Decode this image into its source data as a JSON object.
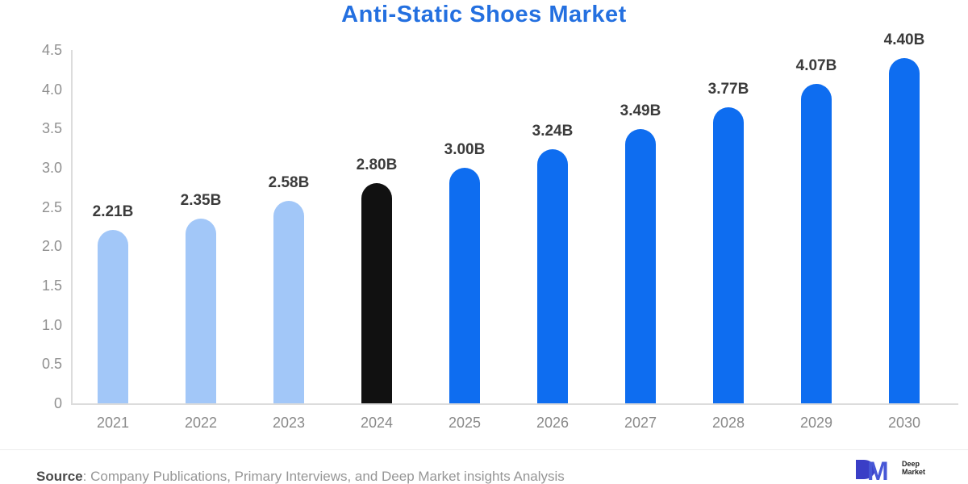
{
  "page": {
    "title": "Anti-Static Shoes Market"
  },
  "chart_data": {
    "type": "bar",
    "title": "Anti-Static Shoes Market",
    "categories": [
      "2021",
      "2022",
      "2023",
      "2024",
      "2025",
      "2026",
      "2027",
      "2028",
      "2029",
      "2030"
    ],
    "values": [
      2.21,
      2.35,
      2.58,
      2.8,
      3.0,
      3.24,
      3.49,
      3.77,
      4.07,
      4.4
    ],
    "bar_labels": [
      "2.21B",
      "2.35B",
      "2.58B",
      "2.80B",
      "3.00B",
      "3.24B",
      "3.49B",
      "3.77B",
      "4.07B",
      "4.40B"
    ],
    "bar_colors": [
      "#a2c7f8",
      "#a2c7f8",
      "#a2c7f8",
      "#111111",
      "#0e6df0",
      "#0e6df0",
      "#0e6df0",
      "#0e6df0",
      "#0e6df0",
      "#0e6df0"
    ],
    "series_semantics": {
      "historical": "#a2c7f8",
      "base_year": "#111111",
      "forecast": "#0e6df0"
    },
    "xlabel": "",
    "ylabel": "",
    "ylim": [
      0,
      4.5
    ],
    "ytick_labels": [
      "4.5",
      "4.0",
      "3.5",
      "3.0",
      "2.5",
      "2.0",
      "1.5",
      "1.0",
      "0.5",
      "0"
    ],
    "ytick_values": [
      4.5,
      4.0,
      3.5,
      3.0,
      2.5,
      2.0,
      1.5,
      1.0,
      0.5,
      0
    ],
    "grid": "off",
    "legend": "none"
  },
  "footer": {
    "source_label": "Source",
    "source_text": ": Company Publications, Primary Interviews, and Deep Market insights Analysis",
    "logo": {
      "monogram": "DM",
      "line1": "Deep",
      "line2": "Market"
    }
  },
  "colors": {
    "title": "#2470e0",
    "axis_text": "#8f8f8f",
    "bar_label_text": "#3b3b3b",
    "source_underline": "#a80000",
    "logo_blue": "#3e45c9"
  }
}
